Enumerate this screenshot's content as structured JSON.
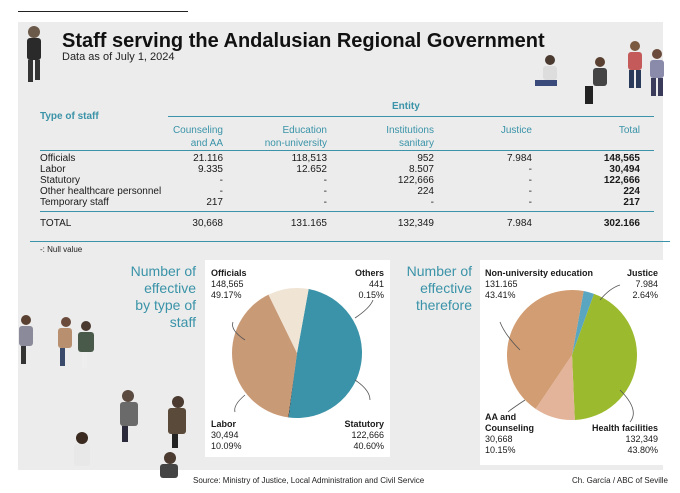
{
  "title": "Staff serving the Andalusian Regional Government",
  "subtitle": "Data as of July 1, 2024",
  "table": {
    "type_header": "Type of staff",
    "entity_header": "Entity",
    "columns": [
      "Counseling and AA",
      "Education non-university",
      "Institutions sanitary",
      "Justice",
      "Total"
    ],
    "columns_l1": [
      "Counseling",
      "Education",
      "Institutions",
      "Justice",
      "Total"
    ],
    "columns_l2": [
      "and AA",
      "non-university",
      "sanitary",
      "",
      ""
    ],
    "rows": [
      {
        "label": "Officials",
        "values": [
          "21.116",
          "118,513",
          "952",
          "7.984",
          "148,565"
        ]
      },
      {
        "label": "Labor",
        "values": [
          "9.335",
          "12.652",
          "8.507",
          "-",
          "30,494"
        ]
      },
      {
        "label": "Statutory",
        "values": [
          "-",
          "-",
          "122,666",
          "-",
          "122,666"
        ]
      },
      {
        "label": "Other healthcare personnel",
        "values": [
          "-",
          "-",
          "224",
          "-",
          "224"
        ]
      },
      {
        "label": "Temporary staff",
        "values": [
          "217",
          "-",
          "-",
          "-",
          "217"
        ]
      }
    ],
    "total": {
      "label": "TOTAL",
      "values": [
        "30,668",
        "131.165",
        "132,349",
        "7.984",
        "302.166"
      ]
    }
  },
  "null_note": "-: Null value",
  "pie1": {
    "title_lines": [
      "Number of",
      "effective",
      "by type of",
      "staff"
    ],
    "labels": {
      "officials": {
        "name": "Officials",
        "value": "148,565",
        "pct": "49.17%"
      },
      "others": {
        "name": "Others",
        "value": "441",
        "pct": "0.15%"
      },
      "labor": {
        "name": "Labor",
        "value": "30,494",
        "pct": "10.09%"
      },
      "statutory": {
        "name": "Statutory",
        "value": "122,666",
        "pct": "40.60%"
      }
    }
  },
  "pie2": {
    "title_lines": [
      "Number of",
      "effective",
      "therefore"
    ],
    "labels": {
      "nonuni": {
        "name": "Non-university education",
        "value": "131.165",
        "pct": "43.41%"
      },
      "justice": {
        "name": "Justice",
        "value": "7.984",
        "pct": "2.64%"
      },
      "aa_l1": "AA and",
      "aa_l2": "Counseling",
      "aa": {
        "value": "30,668",
        "pct": "10.15%"
      },
      "health": {
        "name": "Health facilities",
        "value": "132,349",
        "pct": "43.80%"
      }
    }
  },
  "footer": {
    "source": "Source: Ministry of Justice, Local Administration and Civil Service",
    "credit": "Ch. García / ABC of Seville"
  },
  "colors": {
    "teal": "#3a93a8",
    "tan": "#c99a76",
    "cream": "#f0e4d5",
    "dark": "#1f2f3a",
    "olive": "#9cba2e",
    "peach": "#e3b49a",
    "blue": "#5aa6c0"
  },
  "chart_data": [
    {
      "type": "pie",
      "title": "Number of effective by type of staff",
      "categories": [
        "Officials",
        "Others",
        "Statutory",
        "Labor"
      ],
      "values": [
        148565,
        441,
        122666,
        30494
      ],
      "percent": [
        49.17,
        0.15,
        40.6,
        10.09
      ],
      "colors": [
        "#3a93a8",
        "#1f2f3a",
        "#c99a76",
        "#f0e4d5"
      ]
    },
    {
      "type": "pie",
      "title": "Number of effective therefore",
      "categories": [
        "Justice",
        "Health facilities",
        "AA and Counseling",
        "Non-university education"
      ],
      "values": [
        7984,
        132349,
        30668,
        131165
      ],
      "percent": [
        2.64,
        43.8,
        10.15,
        43.41
      ],
      "colors": [
        "#5aa6c0",
        "#9cba2e",
        "#e3b49a",
        "#d29d72"
      ]
    },
    {
      "type": "table",
      "columns": [
        "Type of staff",
        "Counseling and AA",
        "Education non-university",
        "Institutions sanitary",
        "Justice",
        "Total"
      ],
      "rows": [
        [
          "Officials",
          "21.116",
          "118,513",
          "952",
          "7.984",
          "148,565"
        ],
        [
          "Labor",
          "9.335",
          "12.652",
          "8.507",
          "-",
          "30,494"
        ],
        [
          "Statutory",
          "-",
          "-",
          "122,666",
          "-",
          "122,666"
        ],
        [
          "Other healthcare personnel",
          "-",
          "-",
          "224",
          "-",
          "224"
        ],
        [
          "Temporary staff",
          "217",
          "-",
          "-",
          "-",
          "217"
        ],
        [
          "TOTAL",
          "30,668",
          "131.165",
          "132,349",
          "7.984",
          "302.166"
        ]
      ]
    }
  ]
}
